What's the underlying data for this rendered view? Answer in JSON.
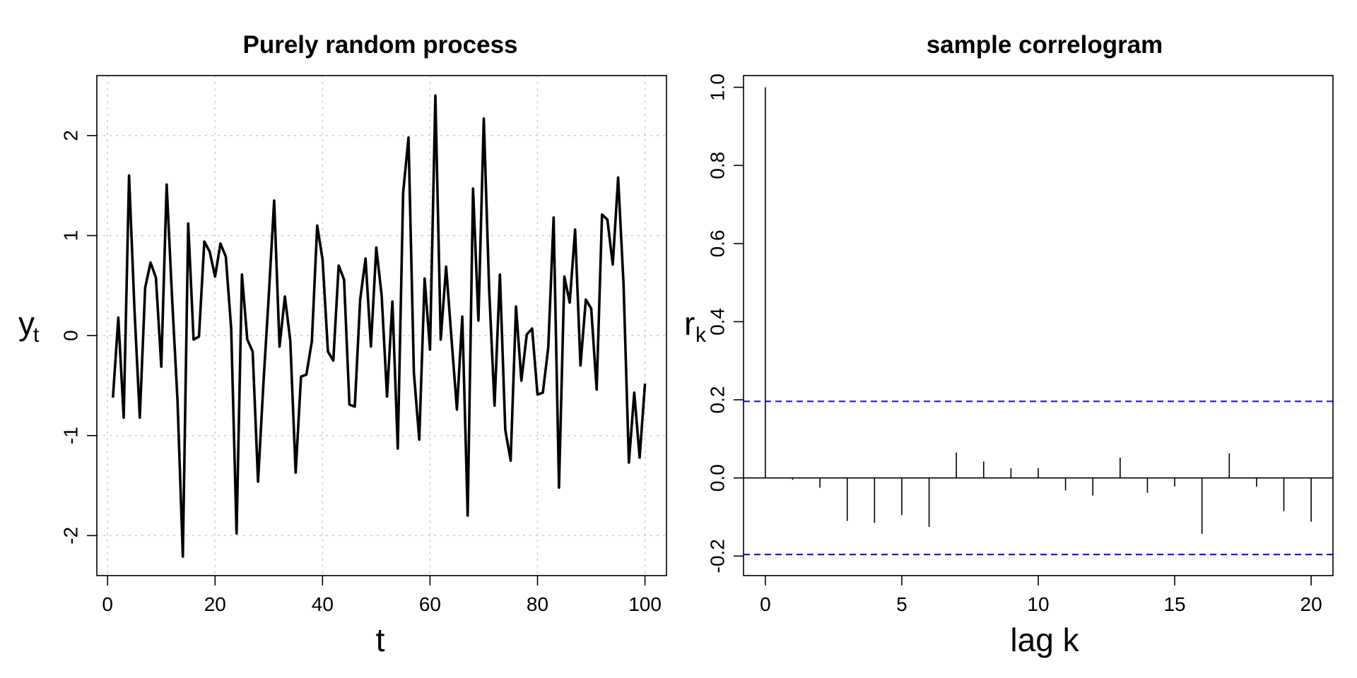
{
  "chart_data": [
    {
      "type": "line",
      "title": "Purely random process",
      "xlabel": "t",
      "ylabel": "y",
      "ylabel_sub": "t",
      "xlim": [
        -2,
        104
      ],
      "ylim": [
        -2.4,
        2.6
      ],
      "xticks": [
        0,
        20,
        40,
        60,
        80,
        100
      ],
      "yticks": [
        -2,
        -1,
        0,
        1,
        2
      ],
      "grid": true,
      "x": [
        1,
        2,
        3,
        4,
        5,
        6,
        7,
        8,
        9,
        10,
        11,
        12,
        13,
        14,
        15,
        16,
        17,
        18,
        19,
        20,
        21,
        22,
        23,
        24,
        25,
        26,
        27,
        28,
        29,
        30,
        31,
        32,
        33,
        34,
        35,
        36,
        37,
        38,
        39,
        40,
        41,
        42,
        43,
        44,
        45,
        46,
        47,
        48,
        49,
        50,
        51,
        52,
        53,
        54,
        55,
        56,
        57,
        58,
        59,
        60,
        61,
        62,
        63,
        64,
        65,
        66,
        67,
        68,
        69,
        70,
        71,
        72,
        73,
        74,
        75,
        76,
        77,
        78,
        79,
        80,
        81,
        82,
        83,
        84,
        85,
        86,
        87,
        88,
        89,
        90,
        91,
        92,
        93,
        94,
        95,
        96,
        97,
        98,
        99,
        100
      ],
      "y": [
        -0.62,
        0.18,
        -0.82,
        1.6,
        0.27,
        -0.82,
        0.48,
        0.73,
        0.58,
        -0.31,
        1.51,
        0.37,
        -0.64,
        -2.21,
        1.12,
        -0.04,
        -0.01,
        0.94,
        0.84,
        0.59,
        0.92,
        0.79,
        0.07,
        -1.98,
        0.61,
        -0.04,
        -0.16,
        -1.46,
        -0.48,
        0.4,
        1.35,
        -0.11,
        0.39,
        -0.05,
        -1.37,
        -0.41,
        -0.39,
        -0.06,
        1.1,
        0.76,
        -0.16,
        -0.25,
        0.7,
        0.56,
        -0.69,
        -0.71,
        0.36,
        0.77,
        -0.11,
        0.88,
        0.4,
        -0.61,
        0.34,
        -1.13,
        1.43,
        1.98,
        -0.37,
        -1.04,
        0.57,
        -0.14,
        2.4,
        -0.04,
        0.69,
        -0.03,
        -0.74,
        0.19,
        -1.8,
        1.47,
        0.15,
        2.17,
        0.46,
        -0.7,
        0.61,
        -0.94,
        -1.25,
        0.29,
        -0.45,
        0.01,
        0.07,
        -0.59,
        -0.57,
        -0.12,
        1.18,
        -1.52,
        0.59,
        0.33,
        1.06,
        -0.3,
        0.36,
        0.27,
        -0.54,
        1.21,
        1.16,
        0.71,
        1.58,
        0.52,
        -1.27,
        -0.57,
        -1.22,
        -0.48
      ]
    },
    {
      "type": "bar",
      "title": "sample correlogram",
      "xlabel": "lag k",
      "ylabel": "r",
      "ylabel_sub": "k",
      "xlim": [
        -0.8,
        20.8
      ],
      "ylim": [
        -0.25,
        1.03
      ],
      "xticks": [
        0,
        5,
        10,
        15,
        20
      ],
      "yticks": [
        "-0.2",
        "0.0",
        "0.2",
        "0.4",
        "0.6",
        "0.8",
        "1.0"
      ],
      "grid": false,
      "x": [
        0,
        1,
        2,
        3,
        4,
        5,
        6,
        7,
        8,
        9,
        10,
        11,
        12,
        13,
        14,
        15,
        16,
        17,
        18,
        19,
        20
      ],
      "values": [
        1.0,
        -0.005,
        -0.025,
        -0.11,
        -0.115,
        -0.095,
        -0.125,
        0.065,
        0.042,
        0.025,
        0.025,
        -0.032,
        -0.045,
        0.052,
        -0.038,
        -0.022,
        -0.143,
        0.063,
        -0.022,
        -0.085,
        -0.112
      ],
      "confidence_bounds": [
        0.196,
        -0.196
      ],
      "colors": {
        "confidence": "#1a1adf",
        "bars": "#000000"
      }
    }
  ]
}
